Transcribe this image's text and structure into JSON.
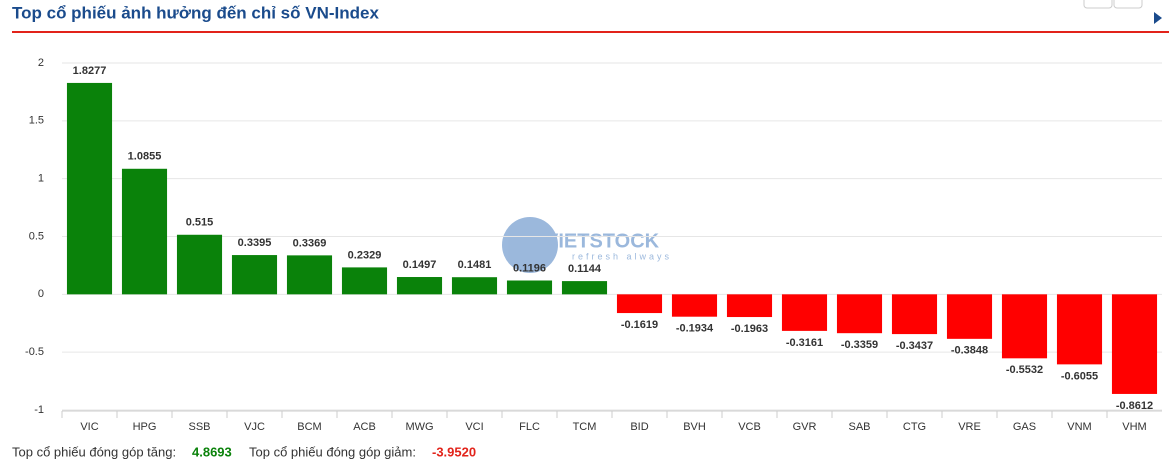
{
  "chart_data": {
    "type": "bar",
    "title": "Top cổ phiếu ảnh hưởng đến chỉ số VN-Index",
    "categories": [
      "VIC",
      "HPG",
      "SSB",
      "VJC",
      "BCM",
      "ACB",
      "MWG",
      "VCI",
      "FLC",
      "TCM",
      "BID",
      "BVH",
      "VCB",
      "GVR",
      "SAB",
      "CTG",
      "VRE",
      "GAS",
      "VNM",
      "VHM"
    ],
    "values": [
      1.8277,
      1.0855,
      0.515,
      0.3395,
      0.3369,
      0.2329,
      0.1497,
      0.1481,
      0.1196,
      0.1144,
      -0.1619,
      -0.1934,
      -0.1963,
      -0.3161,
      -0.3359,
      -0.3437,
      -0.3848,
      -0.5532,
      -0.6055,
      -0.8612
    ],
    "colors": {
      "positive": "#0a820a",
      "negative": "#ff0000"
    },
    "ylim": [
      -1,
      2
    ],
    "yticks": [
      -1,
      -0.5,
      0,
      0.5,
      1,
      1.5,
      2
    ],
    "grid": true,
    "watermark": {
      "brand": "VIETSTOCK",
      "tagline": "refresh always"
    }
  },
  "footer": {
    "gain_label": "Top cổ phiếu đóng góp tăng:",
    "gain_value": "4.8693",
    "loss_label": "Top cổ phiếu đóng góp giảm:",
    "loss_value": "-3.9520"
  }
}
